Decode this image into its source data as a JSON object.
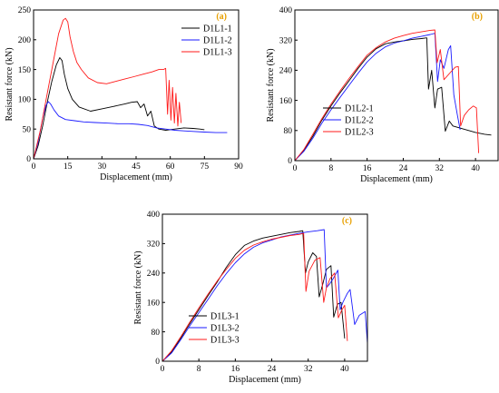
{
  "chart_data": [
    {
      "type": "line",
      "panel_label": "(a)",
      "xlabel": "Displacement (mm)",
      "ylabel": "Resistant force (kN)",
      "xlim": [
        0,
        90
      ],
      "ylim": [
        0,
        250
      ],
      "xticks": [
        0,
        15,
        30,
        45,
        60,
        75,
        90
      ],
      "yticks": [
        0,
        50,
        100,
        150,
        200,
        250
      ],
      "grid": false,
      "legend_position": "top-right",
      "series": [
        {
          "name": "D1L1-1",
          "color": "#000000",
          "x": [
            0,
            2,
            4,
            6,
            8,
            10,
            11.5,
            12.5,
            13.5,
            15,
            17,
            20,
            25,
            30,
            35,
            40,
            43,
            45.5,
            47,
            48.5,
            50,
            51.5,
            53,
            55,
            58,
            62,
            66,
            70,
            73,
            75
          ],
          "y": [
            0,
            22,
            55,
            95,
            130,
            158,
            170,
            165,
            142,
            118,
            100,
            87,
            80,
            84,
            88,
            92,
            95,
            96,
            86,
            92,
            72,
            80,
            55,
            50,
            48,
            50,
            52,
            51,
            50,
            49
          ]
        },
        {
          "name": "D1L1-2",
          "color": "#1a1aff",
          "x": [
            0,
            2,
            4,
            5.5,
            6.5,
            7.5,
            9,
            11,
            14,
            18,
            22,
            27,
            32,
            37,
            42,
            46,
            50,
            54,
            58,
            62,
            66,
            70,
            75,
            80,
            85
          ],
          "y": [
            0,
            28,
            68,
            90,
            96,
            92,
            82,
            72,
            66,
            64,
            62,
            61,
            60,
            59,
            59,
            58,
            56,
            52,
            50,
            48,
            47,
            46,
            45,
            44,
            44
          ]
        },
        {
          "name": "D1L1-3",
          "color": "#ff1a1a",
          "x": [
            0,
            3,
            6,
            9,
            11,
            13,
            14,
            15,
            16,
            17.5,
            19,
            21,
            24,
            28,
            32,
            36,
            40,
            44,
            48,
            52,
            55,
            57,
            58,
            58.8,
            59.5,
            60.3,
            61,
            61.8,
            62.5,
            63.3,
            64,
            64.8
          ],
          "y": [
            0,
            48,
            110,
            170,
            210,
            233,
            236,
            230,
            205,
            180,
            162,
            150,
            136,
            128,
            126,
            130,
            134,
            138,
            142,
            146,
            150,
            150,
            152,
            75,
            132,
            65,
            120,
            60,
            110,
            55,
            95,
            60
          ]
        }
      ]
    },
    {
      "type": "line",
      "panel_label": "(b)",
      "xlabel": "Displacement (mm)",
      "ylabel": "Resistant force (kN)",
      "xlim": [
        0,
        45
      ],
      "ylim": [
        0,
        400
      ],
      "xticks": [
        0,
        8,
        16,
        24,
        32,
        40
      ],
      "yticks": [
        0,
        80,
        160,
        240,
        320,
        400
      ],
      "grid": false,
      "legend_position": "bottom-left",
      "series": [
        {
          "name": "D1L2-1",
          "color": "#000000",
          "x": [
            0,
            2,
            4,
            6,
            8,
            10,
            12,
            14,
            16,
            18,
            20,
            22,
            24,
            26,
            28,
            29.2,
            29.6,
            30.3,
            31,
            31.6,
            32.5,
            33.3,
            34.2,
            35,
            37,
            40,
            42,
            43.5
          ],
          "y": [
            0,
            28,
            65,
            108,
            145,
            180,
            212,
            245,
            275,
            297,
            310,
            315,
            318,
            322,
            324,
            326,
            190,
            240,
            140,
            190,
            195,
            78,
            105,
            92,
            85,
            75,
            70,
            68
          ]
        },
        {
          "name": "D1L2-2",
          "color": "#1a1aff",
          "x": [
            0,
            2,
            4,
            6,
            8,
            10,
            12,
            14,
            16,
            18,
            20,
            22,
            24,
            26,
            28,
            30,
            31,
            31.6,
            32.2,
            33,
            34,
            34.5,
            35.2,
            36,
            36.6
          ],
          "y": [
            0,
            25,
            60,
            100,
            135,
            168,
            200,
            232,
            262,
            285,
            302,
            312,
            318,
            325,
            330,
            335,
            338,
            210,
            268,
            245,
            295,
            305,
            175,
            120,
            82
          ]
        },
        {
          "name": "D1L2-3",
          "color": "#ff1a1a",
          "x": [
            0,
            2,
            4,
            6,
            8,
            10,
            12,
            14,
            16,
            18,
            20,
            22,
            24,
            26,
            28,
            30,
            31,
            31.5,
            32.2,
            33,
            34.5,
            35.5,
            36.2,
            36.7,
            37.5,
            38.5,
            39.5,
            40.2,
            40.7
          ],
          "y": [
            0,
            30,
            70,
            112,
            150,
            185,
            218,
            250,
            280,
            300,
            315,
            325,
            332,
            338,
            342,
            346,
            347,
            260,
            295,
            215,
            235,
            248,
            250,
            92,
            120,
            135,
            145,
            140,
            20
          ]
        }
      ]
    },
    {
      "type": "line",
      "panel_label": "(c)",
      "xlabel": "Displacement (mm)",
      "ylabel": "Resistant force (kN)",
      "xlim": [
        0,
        45
      ],
      "ylim": [
        0,
        400
      ],
      "xticks": [
        0,
        8,
        16,
        24,
        32,
        40
      ],
      "yticks": [
        0,
        80,
        160,
        240,
        320,
        400
      ],
      "grid": false,
      "legend_position": "bottom-left",
      "series": [
        {
          "name": "D1L3-1",
          "color": "#000000",
          "x": [
            0,
            2,
            4,
            6,
            8,
            10,
            12,
            14,
            16,
            18,
            20,
            22,
            24,
            26,
            28,
            30,
            30.8,
            31.4,
            32,
            33,
            33.8,
            34.4,
            35.2,
            36,
            37,
            37.6,
            38.4,
            39.2,
            40
          ],
          "y": [
            0,
            25,
            62,
            102,
            140,
            178,
            215,
            255,
            290,
            315,
            327,
            335,
            340,
            345,
            350,
            353,
            355,
            240,
            270,
            295,
            285,
            175,
            210,
            250,
            260,
            120,
            155,
            160,
            62
          ]
        },
        {
          "name": "D1L3-2",
          "color": "#1a1aff",
          "x": [
            0,
            2,
            4,
            6,
            8,
            10,
            12,
            14,
            16,
            18,
            20,
            22,
            24,
            26,
            28,
            30,
            32,
            34,
            35.5,
            36,
            36.7,
            37.5,
            38.5,
            39,
            39.6,
            40.6,
            41.2,
            42.2,
            43.2,
            44.5,
            45
          ],
          "y": [
            0,
            22,
            58,
            96,
            132,
            168,
            205,
            238,
            268,
            292,
            310,
            322,
            330,
            338,
            343,
            348,
            352,
            355,
            358,
            200,
            210,
            225,
            248,
            140,
            160,
            185,
            195,
            100,
            125,
            135,
            48
          ]
        },
        {
          "name": "D1L3-3",
          "color": "#ff1a1a",
          "x": [
            0,
            2,
            4,
            6,
            8,
            10,
            12,
            14,
            16,
            18,
            20,
            22,
            24,
            26,
            28,
            30,
            31,
            31.5,
            32.2,
            33.5,
            34.6,
            35.4,
            36,
            36.8,
            37.8,
            38.6,
            39.4,
            40,
            40.6
          ],
          "y": [
            0,
            28,
            66,
            106,
            145,
            182,
            218,
            250,
            280,
            302,
            316,
            325,
            332,
            337,
            342,
            345,
            348,
            190,
            245,
            275,
            282,
            160,
            200,
            225,
            240,
            118,
            140,
            152,
            55
          ]
        }
      ]
    }
  ]
}
